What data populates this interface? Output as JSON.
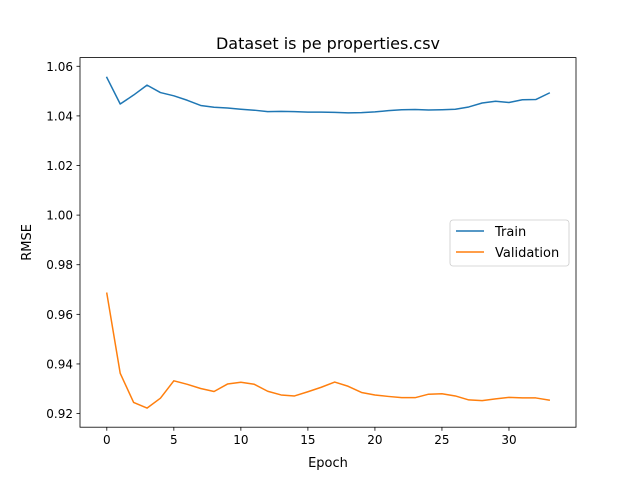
{
  "chart_data": {
    "type": "line",
    "title": "Dataset is pe properties.csv",
    "xlabel": "Epoch",
    "ylabel": "RMSE",
    "xlim": [
      -2,
      35
    ],
    "ylim": [
      0.9145,
      1.0635
    ],
    "xticks": [
      0,
      5,
      10,
      15,
      20,
      25,
      30
    ],
    "yticks": [
      0.92,
      0.94,
      0.96,
      0.98,
      1.0,
      1.02,
      1.04,
      1.06
    ],
    "ytick_labels": [
      "0.92",
      "0.94",
      "0.96",
      "0.98",
      "1.00",
      "1.02",
      "1.04",
      "1.06"
    ],
    "legend_position": "center-right",
    "x": [
      0,
      1,
      2,
      3,
      4,
      5,
      6,
      7,
      8,
      9,
      10,
      11,
      12,
      13,
      14,
      15,
      16,
      17,
      18,
      19,
      20,
      21,
      22,
      23,
      24,
      25,
      26,
      27,
      28,
      29,
      30,
      31,
      32,
      33
    ],
    "series": [
      {
        "name": "Train",
        "color": "#1f77b4",
        "values": [
          1.0555,
          1.0448,
          1.0484,
          1.0524,
          1.0494,
          1.0481,
          1.0463,
          1.0442,
          1.0435,
          1.0432,
          1.0427,
          1.0423,
          1.0417,
          1.0418,
          1.0417,
          1.0415,
          1.0415,
          1.0414,
          1.0412,
          1.0413,
          1.0416,
          1.0421,
          1.0425,
          1.0426,
          1.0424,
          1.0425,
          1.0427,
          1.0436,
          1.0452,
          1.0459,
          1.0454,
          1.0465,
          1.0466,
          1.0492
        ]
      },
      {
        "name": "Validation",
        "color": "#ff7f0e",
        "values": [
          0.9685,
          0.9362,
          0.9245,
          0.9222,
          0.9262,
          0.9332,
          0.9318,
          0.9301,
          0.9289,
          0.9319,
          0.9326,
          0.9318,
          0.929,
          0.9275,
          0.9271,
          0.9288,
          0.9306,
          0.9327,
          0.931,
          0.9285,
          0.9275,
          0.9269,
          0.9264,
          0.9264,
          0.9278,
          0.928,
          0.9271,
          0.9255,
          0.9252,
          0.9259,
          0.9265,
          0.9263,
          0.9263,
          0.9254
        ]
      }
    ]
  }
}
